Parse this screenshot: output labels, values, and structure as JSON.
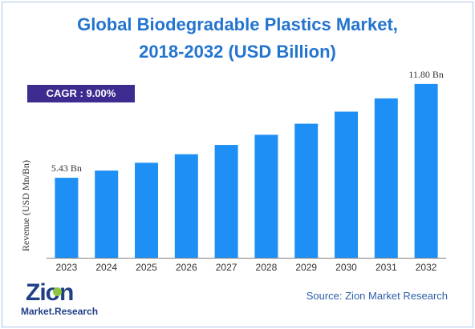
{
  "title_line1": "Global Biodegradable Plastics Market,",
  "title_line2": "2018-2032 (USD Billion)",
  "cagr_label": "CAGR : 9.00%",
  "source": "Source: Zion Market Research",
  "logo": {
    "main": "Zion",
    "sub": "Market.Research",
    "icon": "zion-logo-icon"
  },
  "colors": {
    "title": "#2374cf",
    "bar": "#1e90f5",
    "cagr_bg": "#3d2b8f",
    "axis": "#7f7f7f"
  },
  "chart_data": {
    "type": "bar",
    "title": "Global Biodegradable Plastics Market, 2018-2032 (USD Billion)",
    "xlabel": "",
    "ylabel": "Revenue (USD Mn/Bn)",
    "categories": [
      "2023",
      "2024",
      "2025",
      "2026",
      "2027",
      "2028",
      "2029",
      "2030",
      "2031",
      "2032"
    ],
    "values": [
      5.43,
      5.92,
      6.45,
      7.03,
      7.66,
      8.35,
      9.1,
      9.92,
      10.82,
      11.8
    ],
    "data_labels": {
      "0": "5.43 Bn",
      "9": "11.80 Bn"
    },
    "ylim": [
      0,
      12.5
    ],
    "grid": false,
    "legend": "none"
  }
}
